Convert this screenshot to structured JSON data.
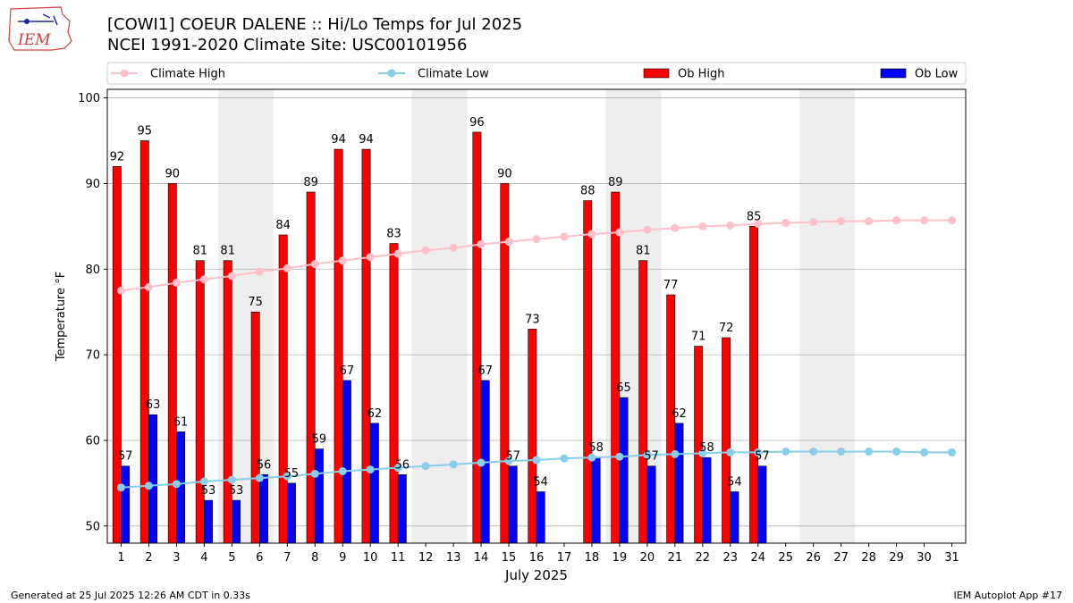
{
  "header": {
    "title": "[COWI1] COEUR DALENE :: Hi/Lo Temps for Jul 2025",
    "subtitle": "NCEI 1991-2020 Climate Site: USC00101956"
  },
  "logo_text": "IEM",
  "footer": {
    "generated": "Generated at 25 Jul 2025 12:26 AM CDT in 0.33s",
    "app": "IEM Autoplot App #17"
  },
  "colors": {
    "ob_high": "#ff0000",
    "ob_low": "#0000ff",
    "climate_high": "#ffc0cb",
    "climate_low": "#87ceeb",
    "weekend_band": "#eeeeee",
    "grid": "#b0b0b0"
  },
  "chart_data": {
    "type": "bar",
    "xlabel": "July 2025",
    "ylabel": "Temperature °F",
    "ylim": [
      48,
      101
    ],
    "yticks": [
      50,
      60,
      70,
      80,
      90,
      100
    ],
    "grid": "horizontal",
    "legend_position": "top",
    "categories": [
      1,
      2,
      3,
      4,
      5,
      6,
      7,
      8,
      9,
      10,
      11,
      12,
      13,
      14,
      15,
      16,
      17,
      18,
      19,
      20,
      21,
      22,
      23,
      24,
      25,
      26,
      27,
      28,
      29,
      30,
      31
    ],
    "weekend_bands": [
      [
        5,
        6
      ],
      [
        12,
        13
      ],
      [
        19,
        20
      ],
      [
        26,
        27
      ]
    ],
    "series": [
      {
        "name": "Climate High",
        "kind": "line",
        "values": [
          77.5,
          77.9,
          78.4,
          78.8,
          79.2,
          79.7,
          80.1,
          80.6,
          81.0,
          81.4,
          81.8,
          82.2,
          82.5,
          82.9,
          83.2,
          83.5,
          83.8,
          84.1,
          84.3,
          84.6,
          84.8,
          85.0,
          85.1,
          85.3,
          85.4,
          85.5,
          85.6,
          85.6,
          85.7,
          85.7,
          85.7
        ]
      },
      {
        "name": "Climate Low",
        "kind": "line",
        "values": [
          54.5,
          54.7,
          54.9,
          55.2,
          55.4,
          55.6,
          55.8,
          56.1,
          56.4,
          56.6,
          56.8,
          57.0,
          57.2,
          57.4,
          57.6,
          57.7,
          57.9,
          58.0,
          58.1,
          58.3,
          58.4,
          58.5,
          58.6,
          58.6,
          58.7,
          58.7,
          58.7,
          58.7,
          58.7,
          58.6,
          58.6
        ]
      },
      {
        "name": "Ob High",
        "kind": "bar",
        "values": [
          92,
          95,
          90,
          81,
          81,
          75,
          84,
          89,
          94,
          94,
          83,
          null,
          null,
          96,
          90,
          73,
          null,
          88,
          89,
          81,
          77,
          71,
          72,
          85,
          null,
          null,
          null,
          null,
          null,
          null,
          null
        ]
      },
      {
        "name": "Ob Low",
        "kind": "bar",
        "values": [
          57,
          63,
          61,
          53,
          53,
          56,
          55,
          59,
          67,
          62,
          56,
          null,
          null,
          67,
          57,
          54,
          null,
          58,
          65,
          57,
          62,
          58,
          54,
          57,
          null,
          null,
          null,
          null,
          null,
          null,
          null
        ]
      }
    ]
  }
}
